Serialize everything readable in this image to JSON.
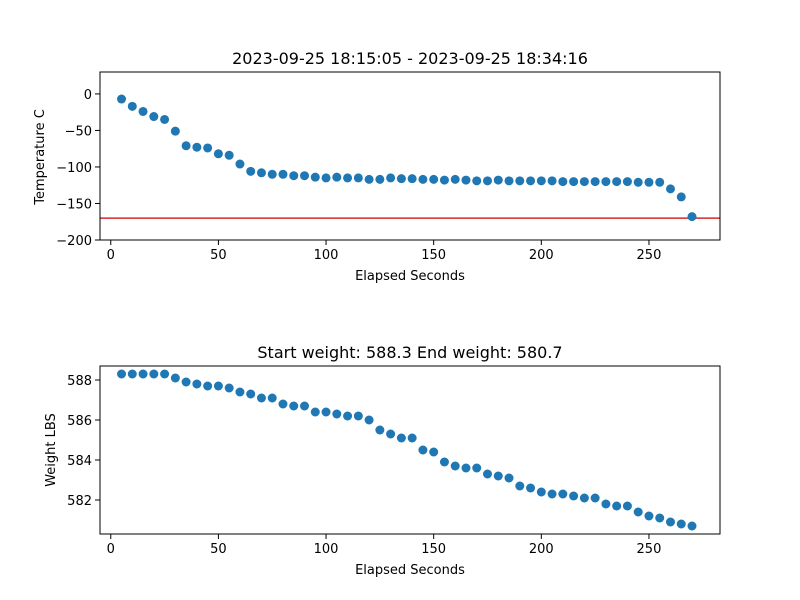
{
  "chart_data": [
    {
      "type": "scatter",
      "title": "2023-09-25 18:15:05 - 2023-09-25 18:34:16",
      "xlabel": "Elapsed Seconds",
      "ylabel": "Temperature C",
      "xlim": [
        -5,
        283
      ],
      "ylim": [
        -200,
        30
      ],
      "xticks": [
        0,
        50,
        100,
        150,
        200,
        250
      ],
      "yticks": [
        0,
        -50,
        -100,
        -150,
        -200
      ],
      "grid": false,
      "marker_color": "#1f77b4",
      "reference_line": {
        "y": -170,
        "color": "#d62728"
      },
      "x": [
        5,
        10,
        15,
        20,
        25,
        30,
        35,
        40,
        45,
        50,
        55,
        60,
        65,
        70,
        75,
        80,
        85,
        90,
        95,
        100,
        105,
        110,
        115,
        120,
        125,
        130,
        135,
        140,
        145,
        150,
        155,
        160,
        165,
        170,
        175,
        180,
        185,
        190,
        195,
        200,
        205,
        210,
        215,
        220,
        225,
        230,
        235,
        240,
        245,
        250,
        255,
        260,
        265,
        270
      ],
      "y": [
        -7,
        -17,
        -24,
        -31,
        -35,
        -51,
        -71,
        -73,
        -74,
        -82,
        -84,
        -96,
        -106,
        -108,
        -110,
        -110,
        -112,
        -112,
        -114,
        -115,
        -114,
        -115,
        -115,
        -117,
        -117,
        -115,
        -116,
        -116,
        -117,
        -117,
        -118,
        -117,
        -118,
        -119,
        -119,
        -118,
        -119,
        -119,
        -119,
        -119,
        -119,
        -120,
        -120,
        -120,
        -120,
        -120,
        -120,
        -120,
        -121,
        -121,
        -121,
        -130,
        -141,
        -168
      ]
    },
    {
      "type": "scatter",
      "title": "Start weight: 588.3 End weight: 580.7",
      "xlabel": "Elapsed Seconds",
      "ylabel": "Weight LBS",
      "xlim": [
        -5,
        283
      ],
      "ylim": [
        580.3,
        588.7
      ],
      "xticks": [
        0,
        50,
        100,
        150,
        200,
        250
      ],
      "yticks": [
        582,
        584,
        586,
        588
      ],
      "grid": false,
      "marker_color": "#1f77b4",
      "x": [
        5,
        10,
        15,
        20,
        25,
        30,
        35,
        40,
        45,
        50,
        55,
        60,
        65,
        70,
        75,
        80,
        85,
        90,
        95,
        100,
        105,
        110,
        115,
        120,
        125,
        130,
        135,
        140,
        145,
        150,
        155,
        160,
        165,
        170,
        175,
        180,
        185,
        190,
        195,
        200,
        205,
        210,
        215,
        220,
        225,
        230,
        235,
        240,
        245,
        250,
        255,
        260,
        265,
        270
      ],
      "y": [
        588.3,
        588.3,
        588.3,
        588.3,
        588.3,
        588.1,
        587.9,
        587.8,
        587.7,
        587.7,
        587.6,
        587.4,
        587.3,
        587.1,
        587.1,
        586.8,
        586.7,
        586.7,
        586.4,
        586.4,
        586.3,
        586.2,
        586.2,
        586.0,
        585.5,
        585.3,
        585.1,
        585.1,
        584.5,
        584.4,
        583.9,
        583.7,
        583.6,
        583.6,
        583.3,
        583.2,
        583.1,
        582.7,
        582.6,
        582.4,
        582.3,
        582.3,
        582.2,
        582.1,
        582.1,
        581.8,
        581.7,
        581.7,
        581.4,
        581.2,
        581.1,
        580.9,
        580.8,
        580.7
      ]
    }
  ]
}
